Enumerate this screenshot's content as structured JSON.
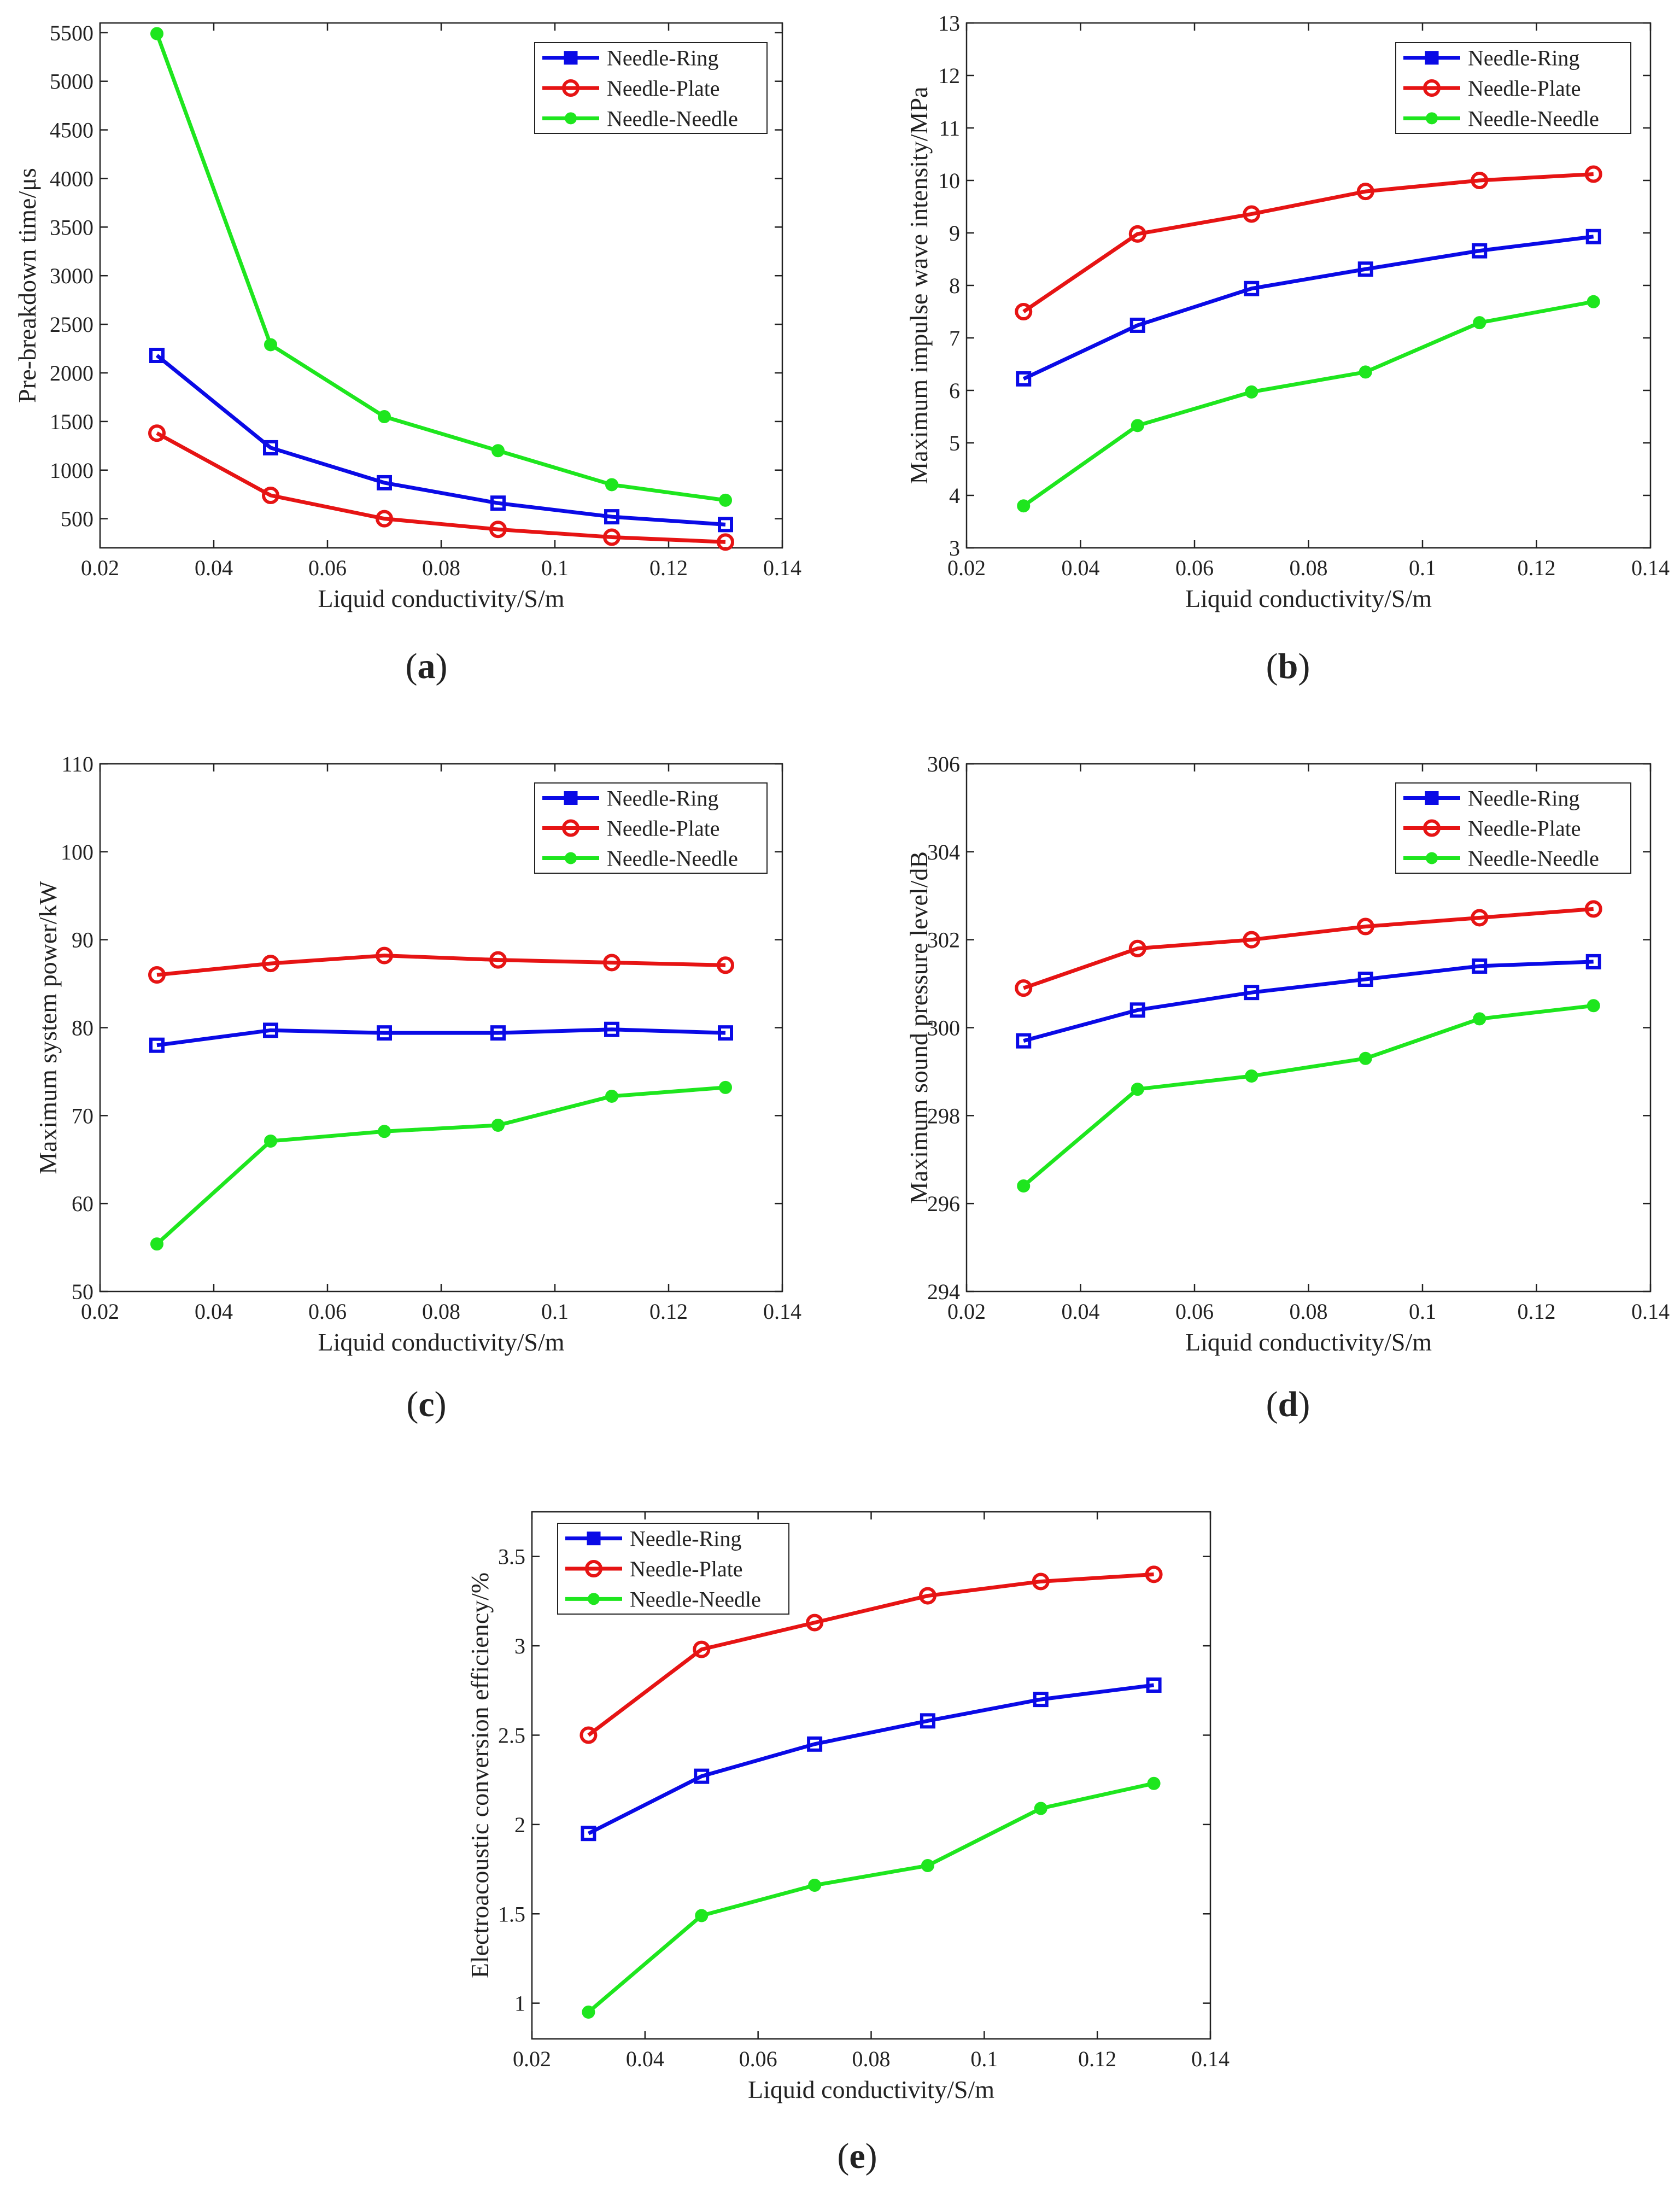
{
  "colors": {
    "needle_ring": "#0a0ae6",
    "needle_plate": "#e61414",
    "needle_needle": "#1ee61e"
  },
  "chart_data": [
    {
      "id": "a",
      "type": "line",
      "panel_label": "a",
      "title": "",
      "xlabel": "Liquid conductivity/S/m",
      "ylabel": "Pre-breakdown time/μs",
      "xlim": [
        0.02,
        0.14
      ],
      "ylim": [
        200,
        5600
      ],
      "xticks": [
        0.02,
        0.04,
        0.06,
        0.08,
        0.1,
        0.12,
        0.14
      ],
      "xtick_labels": [
        "0.02",
        "0.04",
        "0.06",
        "0.08",
        "0.1",
        "0.12",
        "0.14"
      ],
      "yticks": [
        500,
        1000,
        1500,
        2000,
        2500,
        3000,
        3500,
        4000,
        4500,
        5000,
        5500
      ],
      "ytick_labels": [
        "500",
        "1000",
        "1500",
        "2000",
        "2500",
        "3000",
        "3500",
        "4000",
        "4500",
        "5000",
        "5500"
      ],
      "grid": false,
      "legend": "top-right",
      "x": [
        0.03,
        0.05,
        0.07,
        0.09,
        0.11,
        0.13
      ],
      "series": [
        {
          "name": "Needle-Ring",
          "color": "#0a0ae6",
          "marker": "square",
          "values": [
            2180,
            1230,
            870,
            660,
            520,
            440
          ]
        },
        {
          "name": "Needle-Plate",
          "color": "#e61414",
          "marker": "circle",
          "values": [
            1380,
            740,
            500,
            390,
            310,
            260
          ]
        },
        {
          "name": "Needle-Needle",
          "color": "#1ee61e",
          "marker": "dot",
          "values": [
            5490,
            2290,
            1550,
            1200,
            850,
            690
          ]
        }
      ]
    },
    {
      "id": "b",
      "type": "line",
      "panel_label": "b",
      "title": "",
      "xlabel": "Liquid conductivity/S/m",
      "ylabel": "Maximum impulse wave intensity/MPa",
      "xlim": [
        0.02,
        0.14
      ],
      "ylim": [
        3,
        13
      ],
      "xticks": [
        0.02,
        0.04,
        0.06,
        0.08,
        0.1,
        0.12,
        0.14
      ],
      "xtick_labels": [
        "0.02",
        "0.04",
        "0.06",
        "0.08",
        "0.1",
        "0.12",
        "0.14"
      ],
      "yticks": [
        3,
        4,
        5,
        6,
        7,
        8,
        9,
        10,
        11,
        12,
        13
      ],
      "ytick_labels": [
        "3",
        "4",
        "5",
        "6",
        "7",
        "8",
        "9",
        "10",
        "11",
        "12",
        "13"
      ],
      "grid": false,
      "legend": "top-right",
      "x": [
        0.03,
        0.05,
        0.07,
        0.09,
        0.11,
        0.13
      ],
      "series": [
        {
          "name": "Needle-Ring",
          "color": "#0a0ae6",
          "marker": "square",
          "values": [
            6.22,
            7.24,
            7.94,
            8.31,
            8.66,
            8.93
          ]
        },
        {
          "name": "Needle-Plate",
          "color": "#e61414",
          "marker": "circle",
          "values": [
            7.5,
            8.98,
            9.36,
            9.79,
            10.0,
            10.12
          ]
        },
        {
          "name": "Needle-Needle",
          "color": "#1ee61e",
          "marker": "dot",
          "values": [
            3.8,
            5.33,
            5.97,
            6.35,
            7.29,
            7.69
          ]
        }
      ]
    },
    {
      "id": "c",
      "type": "line",
      "panel_label": "c",
      "title": "",
      "xlabel": "Liquid conductivity/S/m",
      "ylabel": "Maximum system power/kW",
      "xlim": [
        0.02,
        0.14
      ],
      "ylim": [
        50,
        110
      ],
      "xticks": [
        0.02,
        0.04,
        0.06,
        0.08,
        0.1,
        0.12,
        0.14
      ],
      "xtick_labels": [
        "0.02",
        "0.04",
        "0.06",
        "0.08",
        "0.1",
        "0.12",
        "0.14"
      ],
      "yticks": [
        50,
        60,
        70,
        80,
        90,
        100,
        110
      ],
      "ytick_labels": [
        "50",
        "60",
        "70",
        "80",
        "90",
        "100",
        "110"
      ],
      "grid": false,
      "legend": "top-right",
      "x": [
        0.03,
        0.05,
        0.07,
        0.09,
        0.11,
        0.13
      ],
      "series": [
        {
          "name": "Needle-Ring",
          "color": "#0a0ae6",
          "marker": "square",
          "values": [
            78.0,
            79.7,
            79.4,
            79.4,
            79.8,
            79.4
          ]
        },
        {
          "name": "Needle-Plate",
          "color": "#e61414",
          "marker": "circle",
          "values": [
            86.0,
            87.3,
            88.2,
            87.7,
            87.4,
            87.1
          ]
        },
        {
          "name": "Needle-Needle",
          "color": "#1ee61e",
          "marker": "dot",
          "values": [
            55.4,
            67.1,
            68.2,
            68.9,
            72.2,
            73.2
          ]
        }
      ]
    },
    {
      "id": "d",
      "type": "line",
      "panel_label": "d",
      "title": "",
      "xlabel": "Liquid conductivity/S/m",
      "ylabel": "Maximum sound pressure level/dB",
      "xlim": [
        0.02,
        0.14
      ],
      "ylim": [
        294,
        306
      ],
      "xticks": [
        0.02,
        0.04,
        0.06,
        0.08,
        0.1,
        0.12,
        0.14
      ],
      "xtick_labels": [
        "0.02",
        "0.04",
        "0.06",
        "0.08",
        "0.1",
        "0.12",
        "0.14"
      ],
      "yticks": [
        294,
        296,
        298,
        300,
        302,
        304,
        306
      ],
      "ytick_labels": [
        "294",
        "296",
        "298",
        "300",
        "302",
        "304",
        "306"
      ],
      "grid": false,
      "legend": "top-right",
      "x": [
        0.03,
        0.05,
        0.07,
        0.09,
        0.11,
        0.13
      ],
      "series": [
        {
          "name": "Needle-Ring",
          "color": "#0a0ae6",
          "marker": "square",
          "values": [
            299.7,
            300.4,
            300.8,
            301.1,
            301.4,
            301.5
          ]
        },
        {
          "name": "Needle-Plate",
          "color": "#e61414",
          "marker": "circle",
          "values": [
            300.9,
            301.8,
            302.0,
            302.3,
            302.5,
            302.7
          ]
        },
        {
          "name": "Needle-Needle",
          "color": "#1ee61e",
          "marker": "dot",
          "values": [
            296.4,
            298.6,
            298.9,
            299.3,
            300.2,
            300.5
          ]
        }
      ]
    },
    {
      "id": "e",
      "type": "line",
      "panel_label": "e",
      "title": "",
      "xlabel": "Liquid conductivity/S/m",
      "ylabel": "Electroacoustic conversion efficiency/%",
      "xlim": [
        0.02,
        0.14
      ],
      "ylim": [
        0.8,
        3.75
      ],
      "xticks": [
        0.02,
        0.04,
        0.06,
        0.08,
        0.1,
        0.12,
        0.14
      ],
      "xtick_labels": [
        "0.02",
        "0.04",
        "0.06",
        "0.08",
        "0.1",
        "0.12",
        "0.14"
      ],
      "yticks": [
        1,
        1.5,
        2,
        2.5,
        3,
        3.5
      ],
      "ytick_labels": [
        "1",
        "1.5",
        "2",
        "2.5",
        "3",
        "3.5"
      ],
      "grid": false,
      "legend": "top-left",
      "x": [
        0.03,
        0.05,
        0.07,
        0.09,
        0.11,
        0.13
      ],
      "series": [
        {
          "name": "Needle-Ring",
          "color": "#0a0ae6",
          "marker": "square",
          "values": [
            1.95,
            2.27,
            2.45,
            2.58,
            2.7,
            2.78
          ]
        },
        {
          "name": "Needle-Plate",
          "color": "#e61414",
          "marker": "circle",
          "values": [
            2.5,
            2.98,
            3.13,
            3.28,
            3.36,
            3.4
          ]
        },
        {
          "name": "Needle-Needle",
          "color": "#1ee61e",
          "marker": "dot",
          "values": [
            0.95,
            1.49,
            1.66,
            1.77,
            2.09,
            2.23
          ]
        }
      ]
    }
  ]
}
